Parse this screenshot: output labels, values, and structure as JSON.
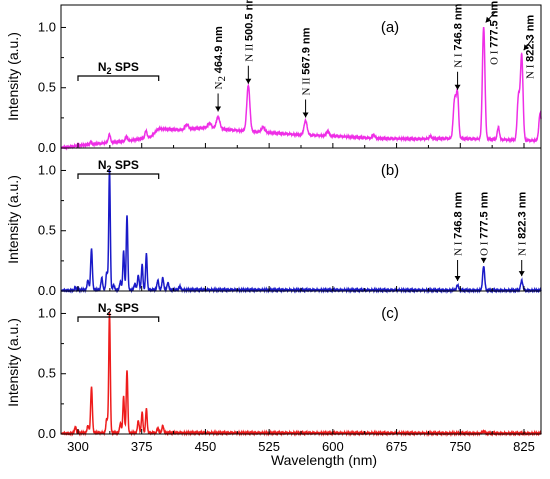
{
  "chart_data": {
    "type": "line",
    "xlabel": "Wavelength (nm)",
    "xlim": [
      280,
      845
    ],
    "x_ticks": [
      300,
      375,
      450,
      525,
      600,
      675,
      750,
      825
    ],
    "panels": [
      {
        "id": "a",
        "label": "(a)",
        "ylabel": "Intensity (a.u.)",
        "ylim": [
          0,
          1.12
        ],
        "y_ticks": [
          0.0,
          0.5,
          1.0
        ],
        "color": "#ee2ee6",
        "bracket": {
          "label": "N",
          "subscript": "2",
          "suffix": " SPS",
          "x_start": 300,
          "x_end": 395
        },
        "annotations": [
          {
            "species": "N",
            "species_sub": "2",
            "wavelength": "464.9 nm",
            "x": 464.9,
            "y": 0.27
          },
          {
            "species": "N II",
            "species_sub": "",
            "wavelength": "500.5 nm",
            "x": 500.5,
            "y": 0.5
          },
          {
            "species": "N II",
            "species_sub": "",
            "wavelength": "567.9 nm",
            "x": 567.9,
            "y": 0.22
          },
          {
            "species": "N I",
            "species_sub": "",
            "wavelength": "746.8 nm",
            "x": 746.8,
            "y": 0.45
          },
          {
            "species": "O I",
            "species_sub": "",
            "wavelength": "777.5 nm",
            "x": 777.5,
            "y": 1.0
          },
          {
            "species": "N I",
            "species_sub": "",
            "wavelength": "822.3 nm",
            "x": 822.3,
            "y": 0.77
          }
        ],
        "background": [
          [
            280,
            0.0
          ],
          [
            300,
            0.02
          ],
          [
            330,
            0.04
          ],
          [
            360,
            0.06
          ],
          [
            385,
            0.09
          ],
          [
            395,
            0.16
          ],
          [
            420,
            0.15
          ],
          [
            450,
            0.17
          ],
          [
            480,
            0.15
          ],
          [
            520,
            0.13
          ],
          [
            560,
            0.11
          ],
          [
            600,
            0.1
          ],
          [
            650,
            0.08
          ],
          [
            700,
            0.075
          ],
          [
            740,
            0.08
          ],
          [
            800,
            0.07
          ],
          [
            845,
            0.06
          ]
        ],
        "peaks": [
          [
            315,
            0.02,
            1
          ],
          [
            337,
            0.07,
            1.2
          ],
          [
            357,
            0.04,
            1.2
          ],
          [
            380,
            0.06,
            1.2
          ],
          [
            428,
            0.04,
            2
          ],
          [
            455,
            0.04,
            2
          ],
          [
            464.9,
            0.1,
            2
          ],
          [
            500.5,
            0.38,
            1.8
          ],
          [
            518,
            0.04,
            2
          ],
          [
            567.9,
            0.12,
            1.8
          ],
          [
            594,
            0.04,
            1.5
          ],
          [
            648,
            0.03,
            1.5
          ],
          [
            715,
            0.02,
            1.5
          ],
          [
            742.4,
            0.18,
            1.3
          ],
          [
            744.2,
            0.24,
            1.3
          ],
          [
            746.8,
            0.36,
            1.3
          ],
          [
            777.5,
            0.93,
            1.5
          ],
          [
            794.8,
            0.1,
            1.3
          ],
          [
            818.5,
            0.36,
            1.5
          ],
          [
            822.3,
            0.7,
            1.5
          ],
          [
            844,
            0.23,
            1.5
          ]
        ]
      },
      {
        "id": "b",
        "label": "(b)",
        "ylabel": "Intensity (a.u.)",
        "ylim": [
          0,
          1.12
        ],
        "y_ticks": [
          0.0,
          0.5,
          1.0
        ],
        "color": "#1a1ac8",
        "bracket": {
          "label": "N",
          "subscript": "2",
          "suffix": " SPS",
          "x_start": 300,
          "x_end": 395
        },
        "annotations": [
          {
            "species": "N I",
            "species_sub": "",
            "wavelength": "746.8 nm",
            "x": 746.8,
            "y": 0.05
          },
          {
            "species": "O I",
            "species_sub": "",
            "wavelength": "777.5 nm",
            "x": 777.5,
            "y": 0.2
          },
          {
            "species": "N I",
            "species_sub": "",
            "wavelength": "822.3 nm",
            "x": 822.3,
            "y": 0.09
          }
        ],
        "background": [
          [
            280,
            0.0
          ],
          [
            300,
            0.01
          ],
          [
            400,
            0.01
          ],
          [
            845,
            0.005
          ]
        ],
        "peaks": [
          [
            297,
            0.02,
            1
          ],
          [
            311.7,
            0.08,
            1
          ],
          [
            315.9,
            0.34,
            1
          ],
          [
            328,
            0.1,
            1
          ],
          [
            333.9,
            0.15,
            1
          ],
          [
            337.1,
            1.0,
            0.9
          ],
          [
            342,
            0.04,
            1
          ],
          [
            350,
            0.07,
            1
          ],
          [
            353.7,
            0.32,
            0.9
          ],
          [
            357.7,
            0.62,
            0.9
          ],
          [
            367,
            0.05,
            1
          ],
          [
            371,
            0.12,
            1
          ],
          [
            375.5,
            0.21,
            0.9
          ],
          [
            380.5,
            0.3,
            0.9
          ],
          [
            394,
            0.08,
            1
          ],
          [
            399.8,
            0.1,
            1
          ],
          [
            405.9,
            0.06,
            1
          ],
          [
            420,
            0.03,
            1
          ],
          [
            746.8,
            0.04,
            1.3
          ],
          [
            777.5,
            0.2,
            1.2
          ],
          [
            822.3,
            0.08,
            1.3
          ]
        ]
      },
      {
        "id": "c",
        "label": "(c)",
        "ylabel": "Intensity (a.u.)",
        "ylim": [
          0,
          1.12
        ],
        "y_ticks": [
          0.0,
          0.5,
          1.0
        ],
        "color": "#ee1c1c",
        "bracket": {
          "label": "N",
          "subscript": "2",
          "suffix": " SPS",
          "x_start": 300,
          "x_end": 395
        },
        "annotations": [],
        "background": [
          [
            280,
            0.0
          ],
          [
            300,
            0.01
          ],
          [
            400,
            0.01
          ],
          [
            845,
            0.005
          ]
        ],
        "peaks": [
          [
            297,
            0.05,
            1
          ],
          [
            311.7,
            0.06,
            1
          ],
          [
            315.9,
            0.38,
            1
          ],
          [
            333.9,
            0.12,
            1
          ],
          [
            337.1,
            1.0,
            0.9
          ],
          [
            350,
            0.08,
            1
          ],
          [
            353.7,
            0.3,
            0.9
          ],
          [
            357.7,
            0.52,
            0.9
          ],
          [
            371,
            0.1,
            1
          ],
          [
            375.5,
            0.17,
            0.9
          ],
          [
            380.5,
            0.2,
            0.9
          ],
          [
            394,
            0.04,
            1
          ],
          [
            399.8,
            0.06,
            1
          ],
          [
            777.5,
            0.02,
            1.2
          ]
        ]
      }
    ]
  }
}
